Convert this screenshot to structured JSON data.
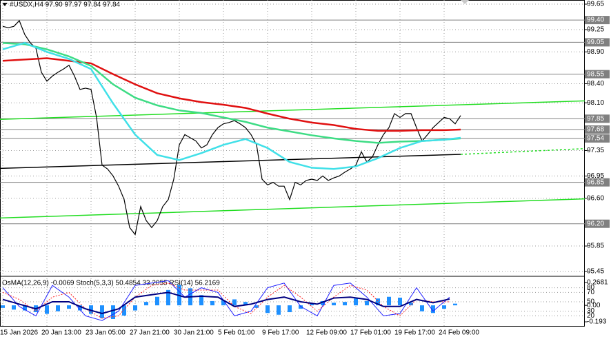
{
  "chart_data": [
    {
      "type": "line",
      "title": "#USDX,H4  97.90 97.97 97.84 97.84",
      "categories": [
        "15 Jan 2026",
        null,
        null,
        null,
        null,
        null,
        null,
        null,
        "20 Jan 13:00",
        null,
        null,
        null,
        null,
        null,
        null,
        null,
        "23 Jan 05:00",
        null,
        null,
        null,
        null,
        null,
        null,
        null,
        "27 Jan 21:00",
        null,
        null,
        null,
        null,
        null,
        null,
        null,
        "30 Jan 21:00",
        null,
        null,
        null,
        null,
        null,
        null,
        null,
        "5 Feb 01:00",
        null,
        null,
        null,
        null,
        null,
        null,
        null,
        "9 Feb 17:00",
        null,
        null,
        null,
        null,
        null,
        null,
        null,
        "12 Feb 09:00",
        null,
        null,
        null,
        null,
        null,
        null,
        null,
        "17 Feb 01:00",
        null,
        null,
        null,
        null,
        null,
        null,
        null,
        "19 Feb 17:00",
        null,
        null,
        null,
        null,
        null,
        null,
        null,
        "24 Feb 09:00",
        null,
        null,
        null
      ],
      "series": [
        {
          "color": "#000000",
          "width": 1.2,
          "values": [
            99.3,
            99.28,
            99.3,
            99.39,
            99.17,
            99.04,
            98.96,
            98.58,
            98.44,
            98.52,
            98.58,
            98.63,
            98.69,
            98.52,
            98.31,
            98.33,
            98.31,
            97.87,
            97.12,
            97.06,
            96.95,
            96.79,
            96.58,
            96.14,
            96.03,
            96.47,
            96.25,
            96.14,
            96.25,
            96.47,
            96.58,
            96.9,
            97.44,
            97.6,
            97.55,
            97.5,
            97.39,
            97.44,
            97.6,
            97.71,
            97.77,
            97.79,
            97.82,
            97.77,
            97.71,
            97.6,
            97.44,
            96.9,
            96.81,
            96.85,
            96.79,
            96.79,
            96.58,
            96.85,
            96.81,
            96.88,
            96.9,
            96.88,
            96.95,
            96.88,
            96.92,
            96.95,
            97.01,
            97.06,
            97.12,
            97.33,
            97.17,
            97.25,
            97.44,
            97.6,
            97.71,
            97.93,
            97.87,
            97.93,
            97.93,
            97.71,
            97.5,
            97.6,
            97.71,
            97.79,
            97.87,
            97.85,
            97.77,
            97.9
          ]
        },
        {
          "color": "#e01010",
          "width": 2.5,
          "x": [
            0,
            4,
            8,
            12,
            16,
            20,
            24,
            28,
            32,
            36,
            40,
            44,
            48,
            52,
            56,
            60,
            64,
            68,
            72,
            76,
            80,
            83
          ],
          "values": [
            98.76,
            98.78,
            98.8,
            98.76,
            98.72,
            98.55,
            98.39,
            98.25,
            98.17,
            98.11,
            98.07,
            98.02,
            97.93,
            97.85,
            97.79,
            97.75,
            97.69,
            97.66,
            97.66,
            97.67,
            97.67,
            97.68
          ]
        },
        {
          "color": "#3ddc84",
          "width": 2.5,
          "x": [
            0,
            4,
            8,
            12,
            16,
            20,
            24,
            28,
            32,
            36,
            40,
            44,
            48,
            52,
            56,
            60,
            64,
            68,
            72,
            76,
            80,
            83
          ],
          "values": [
            99.04,
            99.02,
            98.94,
            98.83,
            98.68,
            98.39,
            98.18,
            98.06,
            97.98,
            97.94,
            97.87,
            97.8,
            97.71,
            97.65,
            97.59,
            97.54,
            97.5,
            97.47,
            97.49,
            97.5,
            97.52,
            97.54
          ]
        },
        {
          "color": "#40e0e8",
          "width": 2.5,
          "x": [
            0,
            4,
            8,
            12,
            16,
            20,
            24,
            28,
            32,
            36,
            40,
            44,
            48,
            52,
            56,
            60,
            64,
            68,
            72,
            76,
            80,
            83
          ],
          "values": [
            98.94,
            99.04,
            98.9,
            98.79,
            98.63,
            98.09,
            97.6,
            97.28,
            97.2,
            97.31,
            97.44,
            97.53,
            97.39,
            97.17,
            97.08,
            97.06,
            97.1,
            97.23,
            97.39,
            97.5,
            97.52,
            97.55
          ]
        }
      ],
      "trendlines": [
        {
          "color": "#22dd22",
          "x": [
            -0.5,
            105.5
          ],
          "values": [
            97.84,
            98.13
          ]
        },
        {
          "color": "#000000",
          "x": [
            -0.5,
            83
          ],
          "values": [
            97.07,
            97.29
          ]
        },
        {
          "color": "#22dd22",
          "dash": true,
          "x": [
            83,
            105.5
          ],
          "values": [
            97.29,
            97.38
          ]
        },
        {
          "color": "#22dd22",
          "x": [
            -0.5,
            105.5
          ],
          "values": [
            96.29,
            96.59
          ]
        }
      ],
      "ylim": [
        95.385,
        99.715
      ],
      "yticks": [
        99.65,
        {
          "value": 99.25,
          "label": "99.25"
        },
        {
          "value": 98.9,
          "label": "98.90"
        },
        {
          "value": 98.4,
          "label": "98.40"
        },
        {
          "value": 98.1,
          "label": "98.10"
        },
        97.35,
        96.95,
        {
          "value": 96.6,
          "label": "96.60"
        },
        95.85,
        95.45
      ],
      "levels": [
        {
          "value": 99.4,
          "label": "99.40"
        },
        99.05,
        98.55,
        97.85,
        97.68,
        97.54,
        96.85,
        {
          "value": 96.2,
          "label": "96.20"
        }
      ],
      "level_color": "#808080",
      "grid": true
    },
    {
      "type": "oscillator",
      "title": "OsMA(12,26,9) -0.0069  Stoch(5,3,3) 50.4854 33.2055  RSI(14) 56.2169",
      "series": [
        {
          "type": "bar",
          "axis": "y2",
          "color": "#1e90ff",
          "x": [
            0,
            2,
            4,
            6,
            8,
            10,
            12,
            14,
            16,
            18,
            20,
            22,
            24,
            26,
            28,
            30,
            32,
            34,
            36,
            38,
            40,
            42,
            44,
            46,
            48,
            50,
            52,
            54,
            56,
            58,
            60,
            62,
            64,
            66,
            68,
            70,
            72,
            74,
            76,
            78,
            80,
            82
          ],
          "values": [
            -0.03,
            -0.05,
            -0.06,
            -0.08,
            -0.1,
            -0.07,
            -0.04,
            -0.06,
            -0.1,
            -0.15,
            -0.16,
            -0.12,
            -0.06,
            0.04,
            0.1,
            0.18,
            0.24,
            0.2,
            0.12,
            0.05,
            0.06,
            0.07,
            0.04,
            -0.03,
            -0.09,
            -0.11,
            -0.08,
            -0.04,
            0.02,
            0.05,
            0.03,
            0.04,
            0.08,
            0.05,
            0.08,
            0.1,
            0.09,
            0.03,
            -0.07,
            -0.09,
            -0.04,
            0.02
          ]
        },
        {
          "type": "line",
          "color": "#2020ff",
          "width": 1,
          "x": [
            0,
            3,
            6,
            9,
            12,
            15,
            18,
            21,
            24,
            27,
            30,
            33,
            36,
            39,
            42,
            45,
            48,
            51,
            54,
            57,
            60,
            63,
            66,
            69,
            72,
            75,
            78,
            81
          ],
          "values": [
            80,
            40,
            20,
            85,
            60,
            20,
            10,
            30,
            85,
            90,
            95,
            60,
            80,
            70,
            20,
            30,
            80,
            90,
            40,
            20,
            85,
            90,
            60,
            20,
            25,
            80,
            30,
            60
          ]
        },
        {
          "type": "line",
          "color": "#ff2020",
          "width": 1,
          "dash": true,
          "x": [
            0,
            3,
            6,
            9,
            12,
            15,
            18,
            21,
            24,
            27,
            30,
            33,
            36,
            39,
            42,
            45,
            48,
            51,
            54,
            57,
            60,
            63,
            66,
            69,
            72,
            75,
            78,
            81
          ],
          "values": [
            70,
            55,
            30,
            60,
            70,
            35,
            15,
            20,
            60,
            85,
            90,
            75,
            75,
            75,
            40,
            25,
            60,
            85,
            60,
            30,
            60,
            85,
            75,
            40,
            20,
            55,
            50,
            50
          ]
        },
        {
          "type": "line",
          "color": "#000080",
          "width": 2,
          "x": [
            0,
            3,
            6,
            9,
            12,
            15,
            18,
            21,
            24,
            27,
            30,
            33,
            36,
            39,
            42,
            45,
            48,
            51,
            54,
            57,
            60,
            63,
            66,
            69,
            72,
            75,
            78,
            81
          ],
          "values": [
            55,
            45,
            35,
            50,
            50,
            35,
            25,
            35,
            60,
            65,
            70,
            60,
            62,
            60,
            40,
            45,
            55,
            60,
            50,
            45,
            58,
            60,
            55,
            40,
            40,
            55,
            48,
            56
          ]
        }
      ],
      "ylim": [
        0,
        100
      ],
      "yticks": [
        80,
        70,
        50,
        30,
        20
      ],
      "y2lim": [
        -0.233,
        0.316
      ],
      "y2ticks": [
        0.2681,
        {
          "value": 0,
          "label": "0.00"
        },
        -0.193
      ],
      "grid": true
    }
  ]
}
